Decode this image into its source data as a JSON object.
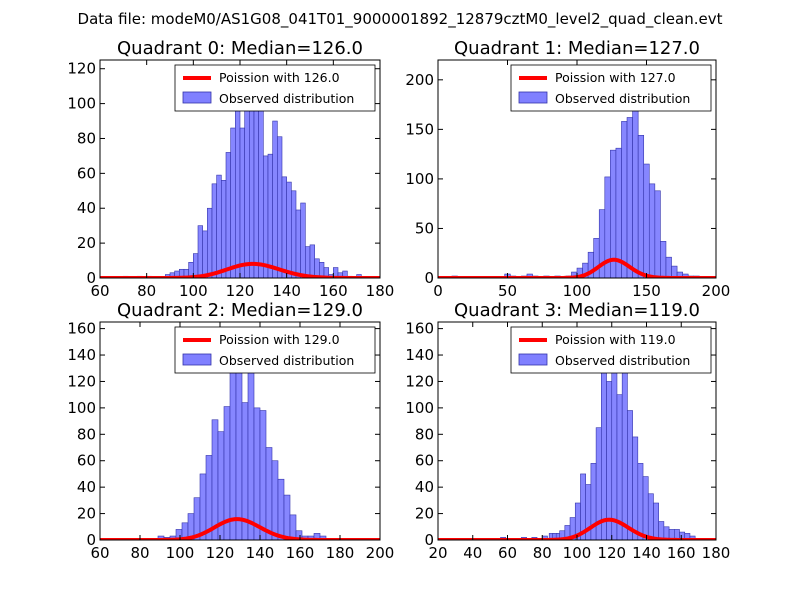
{
  "suptitle": "Data file: modeM0/AS1G08_041T01_9000001892_12879cztM0_level2_quad_clean.evt",
  "colors": {
    "bar_fill": "#8080ff",
    "bar_edge": "#3333aa",
    "poisson_line": "#ff0000",
    "axes": "#000000",
    "background": "#ffffff"
  },
  "chart_data": [
    {
      "type": "bar",
      "title": "Quadrant 0: Median=126.0",
      "xlim": [
        60,
        180
      ],
      "ylim": [
        0,
        125
      ],
      "xticks": [
        60,
        80,
        100,
        120,
        140,
        160,
        180
      ],
      "yticks": [
        0,
        20,
        40,
        60,
        80,
        100,
        120
      ],
      "bin_width": 2,
      "legend": {
        "location": "upper right",
        "line_label": "Poission with 126.0",
        "bar_label": "Observed distribution"
      },
      "bins": [
        [
          70,
          1
        ],
        [
          76,
          1
        ],
        [
          80,
          1
        ],
        [
          88,
          2
        ],
        [
          90,
          3
        ],
        [
          92,
          4
        ],
        [
          94,
          5
        ],
        [
          96,
          5
        ],
        [
          98,
          9
        ],
        [
          100,
          14
        ],
        [
          102,
          30
        ],
        [
          104,
          27
        ],
        [
          106,
          40
        ],
        [
          108,
          54
        ],
        [
          110,
          59
        ],
        [
          112,
          56
        ],
        [
          114,
          72
        ],
        [
          116,
          86
        ],
        [
          118,
          96
        ],
        [
          120,
          86
        ],
        [
          122,
          105
        ],
        [
          124,
          102
        ],
        [
          126,
          114
        ],
        [
          128,
          110
        ],
        [
          130,
          70
        ],
        [
          132,
          71
        ],
        [
          134,
          90
        ],
        [
          136,
          81
        ],
        [
          138,
          58
        ],
        [
          140,
          55
        ],
        [
          142,
          50
        ],
        [
          144,
          39
        ],
        [
          146,
          43
        ],
        [
          148,
          18
        ],
        [
          150,
          19
        ],
        [
          152,
          11
        ],
        [
          154,
          9
        ],
        [
          156,
          6
        ],
        [
          158,
          2
        ],
        [
          160,
          6
        ],
        [
          162,
          3
        ],
        [
          164,
          4
        ],
        [
          166,
          1
        ],
        [
          170,
          2
        ]
      ],
      "poisson": {
        "mean": 126.0,
        "scale": 228
      }
    },
    {
      "type": "bar",
      "title": "Quadrant 1: Median=127.0",
      "xlim": [
        0,
        200
      ],
      "ylim": [
        0,
        220
      ],
      "xticks": [
        0,
        50,
        100,
        150,
        200
      ],
      "yticks": [
        0,
        50,
        100,
        150,
        200
      ],
      "bin_width": 4,
      "legend": {
        "location": "upper right",
        "line_label": "Poission with 127.0",
        "bar_label": "Observed distribution"
      },
      "bins": [
        [
          10,
          2
        ],
        [
          30,
          1
        ],
        [
          48,
          4
        ],
        [
          52,
          2
        ],
        [
          60,
          2
        ],
        [
          64,
          4
        ],
        [
          68,
          2
        ],
        [
          76,
          2
        ],
        [
          84,
          2
        ],
        [
          92,
          2
        ],
        [
          96,
          6
        ],
        [
          100,
          10
        ],
        [
          104,
          15
        ],
        [
          108,
          26
        ],
        [
          112,
          40
        ],
        [
          116,
          69
        ],
        [
          120,
          102
        ],
        [
          124,
          129
        ],
        [
          128,
          131
        ],
        [
          132,
          158
        ],
        [
          136,
          162
        ],
        [
          140,
          186
        ],
        [
          144,
          144
        ],
        [
          148,
          115
        ],
        [
          152,
          95
        ],
        [
          156,
          88
        ],
        [
          160,
          37
        ],
        [
          164,
          21
        ],
        [
          168,
          12
        ],
        [
          172,
          6
        ],
        [
          176,
          4
        ],
        [
          180,
          2
        ],
        [
          184,
          2
        ]
      ],
      "poisson": {
        "mean": 127.0,
        "scale": 520
      }
    },
    {
      "type": "bar",
      "title": "Quadrant 2: Median=129.0",
      "xlim": [
        60,
        200
      ],
      "ylim": [
        0,
        165
      ],
      "xticks": [
        60,
        80,
        100,
        120,
        140,
        160,
        180,
        200
      ],
      "yticks": [
        0,
        20,
        40,
        60,
        80,
        100,
        120,
        140,
        160
      ],
      "bin_width": 3,
      "legend": {
        "location": "upper right",
        "line_label": "Poission with 129.0",
        "bar_label": "Observed distribution"
      },
      "bins": [
        [
          71,
          1
        ],
        [
          77,
          1
        ],
        [
          80,
          1
        ],
        [
          89,
          3
        ],
        [
          92,
          2
        ],
        [
          95,
          3
        ],
        [
          98,
          8
        ],
        [
          101,
          13
        ],
        [
          104,
          20
        ],
        [
          107,
          32
        ],
        [
          110,
          50
        ],
        [
          113,
          64
        ],
        [
          116,
          91
        ],
        [
          119,
          82
        ],
        [
          122,
          101
        ],
        [
          125,
          136
        ],
        [
          128,
          160
        ],
        [
          131,
          104
        ],
        [
          134,
          145
        ],
        [
          137,
          100
        ],
        [
          140,
          98
        ],
        [
          143,
          70
        ],
        [
          146,
          60
        ],
        [
          149,
          46
        ],
        [
          152,
          34
        ],
        [
          155,
          19
        ],
        [
          158,
          7
        ],
        [
          161,
          3
        ],
        [
          164,
          3
        ],
        [
          167,
          5
        ],
        [
          170,
          3
        ],
        [
          173,
          1
        ],
        [
          176,
          1
        ],
        [
          182,
          1
        ],
        [
          185,
          1
        ]
      ],
      "poisson": {
        "mean": 129.0,
        "scale": 450
      }
    },
    {
      "type": "bar",
      "title": "Quadrant 3: Median=119.0",
      "xlim": [
        20,
        180
      ],
      "ylim": [
        0,
        165
      ],
      "xticks": [
        20,
        40,
        60,
        80,
        100,
        120,
        140,
        160,
        180
      ],
      "yticks": [
        0,
        20,
        40,
        60,
        80,
        100,
        120,
        140,
        160
      ],
      "bin_width": 3,
      "legend": {
        "location": "upper right",
        "line_label": "Poission with 119.0",
        "bar_label": "Observed distribution"
      },
      "bins": [
        [
          32,
          1
        ],
        [
          38,
          1
        ],
        [
          56,
          2
        ],
        [
          60,
          1
        ],
        [
          68,
          2
        ],
        [
          74,
          2
        ],
        [
          80,
          3
        ],
        [
          84,
          5
        ],
        [
          86,
          5
        ],
        [
          88,
          5
        ],
        [
          90,
          7
        ],
        [
          93,
          11
        ],
        [
          96,
          17
        ],
        [
          99,
          28
        ],
        [
          102,
          50
        ],
        [
          105,
          42
        ],
        [
          108,
          58
        ],
        [
          111,
          85
        ],
        [
          114,
          135
        ],
        [
          117,
          120
        ],
        [
          120,
          155
        ],
        [
          123,
          110
        ],
        [
          126,
          140
        ],
        [
          129,
          98
        ],
        [
          132,
          78
        ],
        [
          135,
          58
        ],
        [
          138,
          48
        ],
        [
          141,
          35
        ],
        [
          144,
          28
        ],
        [
          147,
          14
        ],
        [
          150,
          10
        ],
        [
          153,
          8
        ],
        [
          156,
          8
        ],
        [
          159,
          6
        ],
        [
          162,
          5
        ],
        [
          165,
          3
        ]
      ],
      "poisson": {
        "mean": 119.0,
        "scale": 420
      }
    }
  ]
}
